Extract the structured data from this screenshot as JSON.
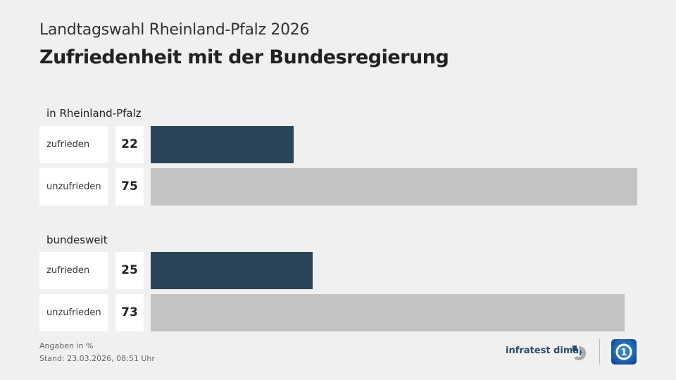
{
  "header": {
    "supertitle": "Landtagswahl Rheinland-Pfalz 2026",
    "title": "Zufriedenheit mit der Bundesregierung"
  },
  "chart_data": {
    "type": "bar",
    "orientation": "horizontal",
    "title": "Zufriedenheit mit der Bundesregierung",
    "unit": "%",
    "groups": [
      {
        "name": "in Rheinland-Pfalz",
        "categories": [
          "zufrieden",
          "unzufrieden"
        ],
        "values": [
          22,
          75
        ]
      },
      {
        "name": "bundesweit",
        "categories": [
          "zufrieden",
          "unzufrieden"
        ],
        "values": [
          25,
          73
        ]
      }
    ],
    "colors": {
      "zufrieden": "#2a4558",
      "unzufrieden": "#c3c3c3"
    }
  },
  "footer": {
    "note": "Angaben in %",
    "stand": "Stand:  23.03.2026, 08:51 Uhr",
    "source": "infratest dimap"
  }
}
